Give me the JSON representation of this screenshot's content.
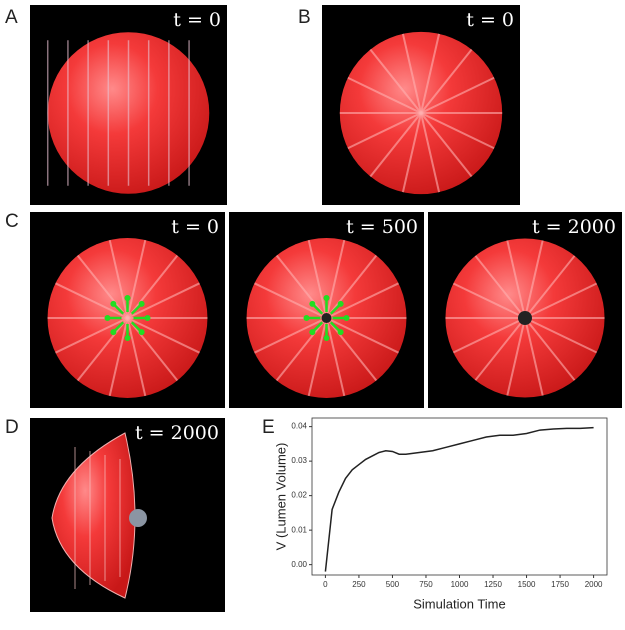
{
  "panels": [
    {
      "letter": "A",
      "time_labels": [
        "t = 0"
      ]
    },
    {
      "letter": "B",
      "time_labels": [
        "t = 0"
      ]
    },
    {
      "letter": "C",
      "time_labels": [
        "t = 0",
        "t = 500",
        "t = 2000"
      ]
    },
    {
      "letter": "D",
      "time_labels": [
        "t = 2000"
      ]
    },
    {
      "letter": "E",
      "time_labels": []
    }
  ],
  "chart_data": {
    "type": "line",
    "xlabel": "Simulation Time",
    "ylabel": "V (Lumen Volume)",
    "x": [
      0,
      50,
      100,
      150,
      200,
      250,
      300,
      350,
      400,
      450,
      500,
      550,
      600,
      700,
      800,
      900,
      1000,
      1100,
      1200,
      1300,
      1400,
      1500,
      1600,
      1700,
      1800,
      1900,
      2000
    ],
    "series": [
      {
        "name": "V",
        "color": "#222222",
        "values": [
          -0.002,
          0.016,
          0.021,
          0.025,
          0.0275,
          0.029,
          0.0305,
          0.0315,
          0.0325,
          0.033,
          0.0328,
          0.032,
          0.032,
          0.0325,
          0.033,
          0.034,
          0.035,
          0.036,
          0.037,
          0.0375,
          0.0375,
          0.038,
          0.039,
          0.0393,
          0.0395,
          0.0395,
          0.0397
        ]
      }
    ],
    "xlim": [
      -100,
      2100
    ],
    "ylim": [
      -0.003,
      0.0425
    ],
    "xticks": [
      0,
      250,
      500,
      750,
      1000,
      1250,
      1500,
      1750,
      2000
    ],
    "yticks": [
      {
        "value": 0,
        "label": "0.00"
      },
      0.01,
      0.02,
      0.03,
      0.04
    ]
  }
}
